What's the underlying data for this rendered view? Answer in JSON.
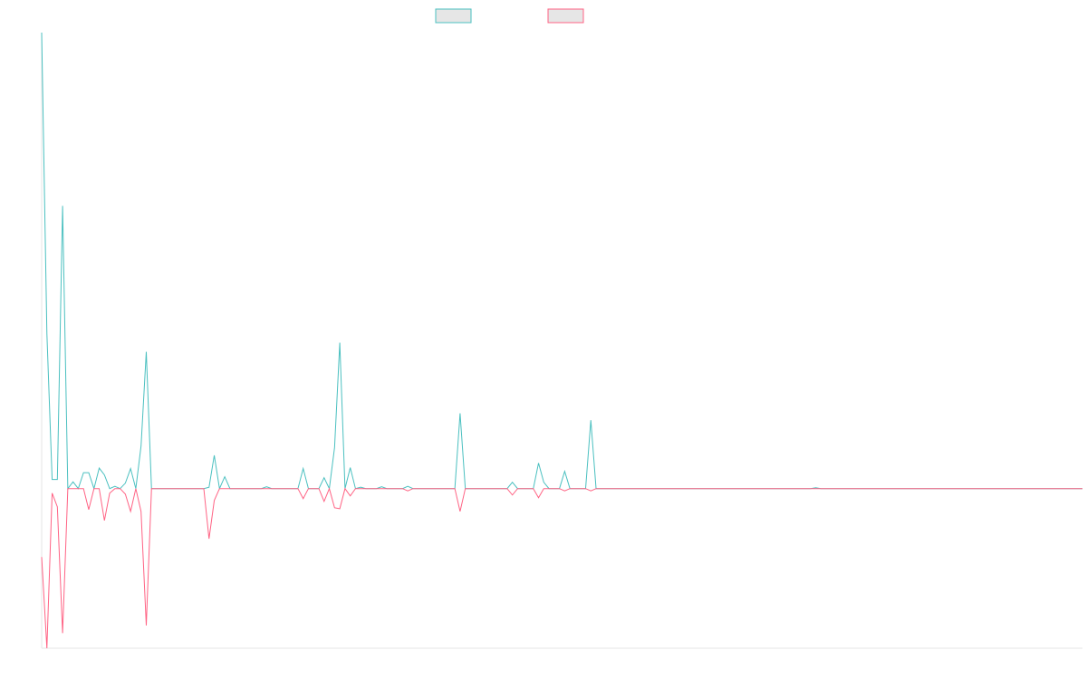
{
  "chart_data": {
    "type": "line",
    "ylim": [
      -35,
      100
    ],
    "series": [
      {
        "color": "#4bc0c0",
        "values": [
          100,
          34,
          2,
          2,
          62,
          0,
          1.5,
          0,
          3.5,
          3.5,
          0,
          4.5,
          3,
          0,
          0.5,
          0,
          1.2,
          4.4,
          0,
          9.3,
          30,
          0,
          0,
          0,
          0,
          0,
          0,
          0,
          0,
          0,
          0,
          0,
          0.3,
          7.3,
          0,
          2.6,
          0,
          0,
          0,
          0,
          0,
          0,
          0,
          0.4,
          0,
          0,
          0,
          0,
          0,
          0,
          4.4,
          0,
          0,
          0,
          2.4,
          0,
          9,
          32,
          0,
          4.6,
          0,
          0.3,
          0,
          0,
          0,
          0.4,
          0,
          0,
          0,
          0,
          0.5,
          0,
          0,
          0,
          0,
          0,
          0,
          0,
          0,
          0,
          16.5,
          0,
          0,
          0,
          0,
          0,
          0,
          0,
          0,
          0,
          1.4,
          0,
          0,
          0,
          0,
          5.6,
          1.4,
          0,
          0,
          0,
          3.8,
          0,
          0,
          0,
          0,
          15,
          0,
          0,
          0,
          0,
          0,
          0,
          0,
          0,
          0,
          0,
          0,
          0,
          0,
          0,
          0,
          0,
          0,
          0,
          0,
          0,
          0,
          0,
          0,
          0,
          0,
          0,
          0,
          0,
          0,
          0,
          0,
          0,
          0,
          0,
          0,
          0,
          0,
          0,
          0,
          0,
          0,
          0,
          0.2,
          0,
          0,
          0,
          0,
          0,
          0,
          0,
          0,
          0,
          0,
          0,
          0,
          0,
          0,
          0,
          0,
          0,
          0,
          0,
          0,
          0,
          0,
          0,
          0,
          0,
          0,
          0,
          0,
          0,
          0,
          0,
          0,
          0,
          0,
          0,
          0,
          0,
          0,
          0,
          0,
          0,
          0,
          0,
          0,
          0,
          0,
          0,
          0,
          0,
          0,
          0
        ]
      },
      {
        "color": "#ff6384",
        "values": [
          -15,
          -35,
          -1,
          -4,
          -31.7,
          0,
          0,
          0,
          0,
          -4.6,
          0,
          0,
          -7,
          -1,
          0,
          0,
          -1.2,
          -5,
          0,
          -5,
          -30,
          0,
          0,
          0,
          0,
          0,
          0,
          0,
          0,
          0,
          0,
          0,
          -11,
          -2.6,
          0,
          0,
          0,
          0,
          0,
          0,
          0,
          0,
          0,
          0,
          0,
          0,
          0,
          0,
          0,
          0,
          -2.2,
          0,
          0,
          0,
          -2.8,
          0,
          -4.2,
          -4.4,
          0,
          -1.6,
          0,
          0,
          0,
          0,
          0,
          0,
          0,
          0,
          0,
          0,
          -0.5,
          0,
          0,
          0,
          0,
          0,
          0,
          0,
          0,
          0,
          -5,
          0,
          0,
          0,
          0,
          0,
          0,
          0,
          0,
          0,
          -1.4,
          0,
          0,
          0,
          0,
          -2,
          0,
          0,
          0,
          0,
          -0.5,
          0,
          0,
          0,
          0,
          -0.5,
          0,
          0,
          0,
          0,
          0,
          0,
          0,
          0,
          0,
          0,
          0,
          0,
          0,
          0,
          0,
          0,
          0,
          0,
          0,
          0,
          0,
          0,
          0,
          0,
          0,
          0,
          0,
          0,
          0,
          0,
          0,
          0,
          0,
          0,
          0,
          0,
          0,
          0,
          0,
          0,
          0,
          0,
          0,
          0,
          0,
          0,
          0,
          0,
          0,
          0,
          0,
          0,
          0,
          0,
          0,
          0,
          0,
          0,
          0,
          0,
          0,
          0,
          0,
          0,
          0,
          0,
          0,
          0,
          0,
          0,
          0,
          0,
          0,
          0,
          0,
          0,
          0,
          0,
          0,
          0,
          0,
          0,
          0,
          0,
          0,
          0,
          0,
          0,
          0,
          0,
          0,
          0,
          0,
          0
        ]
      }
    ]
  }
}
